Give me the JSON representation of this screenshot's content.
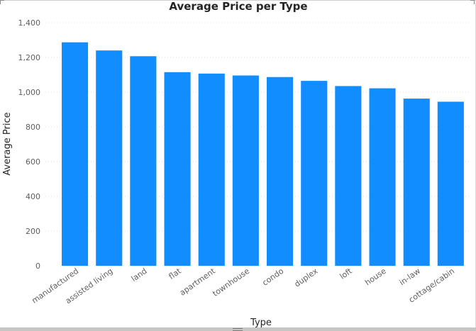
{
  "chart_data": {
    "type": "bar",
    "title": "Average Price per Type",
    "xlabel": "Type",
    "ylabel": "Average Price",
    "categories": [
      "manufactured",
      "assisted living",
      "land",
      "flat",
      "apartment",
      "townhouse",
      "condo",
      "duplex",
      "loft",
      "house",
      "in-law",
      "cottage/cabin"
    ],
    "values": [
      1287,
      1240,
      1207,
      1115,
      1107,
      1096,
      1087,
      1065,
      1035,
      1022,
      963,
      945
    ],
    "yticks": [
      "0",
      "200",
      "400",
      "600",
      "800",
      "1,000",
      "1,200",
      "1,400"
    ],
    "ylim": [
      0,
      1400
    ],
    "grid": true,
    "color": "#118dff"
  }
}
